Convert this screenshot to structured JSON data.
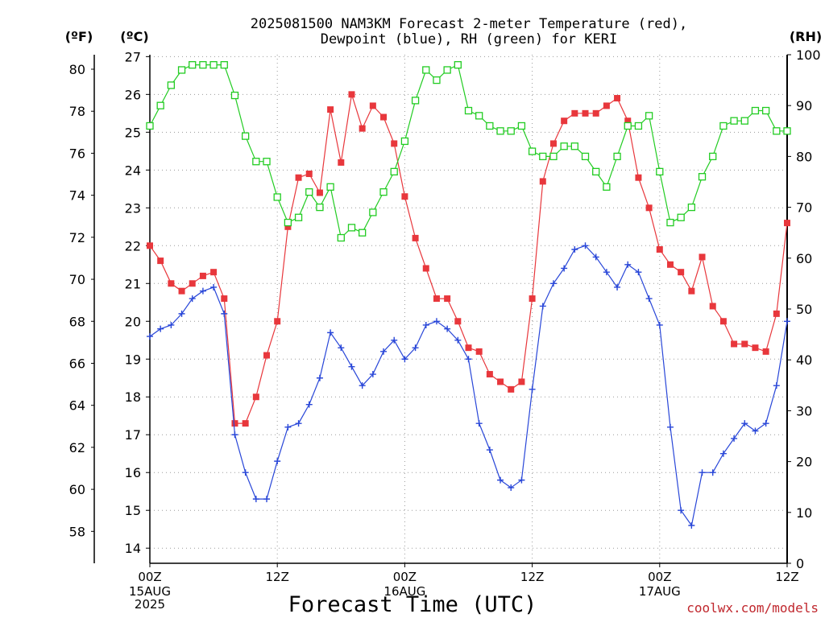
{
  "title": {
    "line1": "2025081500 NAM3KM Forecast 2-meter Temperature (red),",
    "line2": "Dewpoint (blue), RH (green) for KERI"
  },
  "units": {
    "fahrenheit": "(ºF)",
    "celsius": "(ºC)",
    "rh": "(RH)"
  },
  "x_axis": {
    "title": "Forecast Time (UTC)",
    "ticks": [
      {
        "hour": 0,
        "label": "00Z",
        "sub": [
          "15AUG",
          "2025"
        ]
      },
      {
        "hour": 12,
        "label": "12Z",
        "sub": []
      },
      {
        "hour": 24,
        "label": "00Z",
        "sub": [
          "16AUG"
        ]
      },
      {
        "hour": 36,
        "label": "12Z",
        "sub": []
      },
      {
        "hour": 48,
        "label": "00Z",
        "sub": [
          "17AUG"
        ]
      },
      {
        "hour": 60,
        "label": "12Z",
        "sub": []
      }
    ]
  },
  "credit": "coolwx.com/models",
  "colors": {
    "temperature": "#e8373c",
    "dewpoint": "#2846d8",
    "rh": "#22cc22",
    "grid": "#9a9a9a"
  },
  "chart_data": {
    "type": "line",
    "title": "2025081500 NAM3KM Forecast 2-meter Temperature (red), Dewpoint (blue), RH (green) for KERI",
    "xlabel": "Forecast Time (UTC)",
    "x_unit": "forecast hour from 2025-08-15 00Z",
    "xlim": [
      0,
      60
    ],
    "y_left_celsius": {
      "label": "(ºC)",
      "ylim": [
        13.6,
        27.05
      ],
      "ticks": [
        14,
        15,
        16,
        17,
        18,
        19,
        20,
        21,
        22,
        23,
        24,
        25,
        26,
        27
      ]
    },
    "y_left_fahrenheit": {
      "label": "(ºF)",
      "ticks": [
        58,
        60,
        62,
        64,
        66,
        68,
        70,
        72,
        74,
        76,
        78,
        80
      ]
    },
    "y_right_rh": {
      "label": "(RH)",
      "ylim": [
        0,
        100
      ],
      "ticks": [
        0,
        10,
        20,
        30,
        40,
        50,
        60,
        70,
        80,
        90,
        100
      ]
    },
    "grid": true,
    "x": [
      0,
      1,
      2,
      3,
      4,
      5,
      6,
      7,
      8,
      9,
      10,
      11,
      12,
      13,
      14,
      15,
      16,
      17,
      18,
      19,
      20,
      21,
      22,
      23,
      24,
      25,
      26,
      27,
      28,
      29,
      30,
      31,
      32,
      33,
      34,
      35,
      36,
      37,
      38,
      39,
      40,
      41,
      42,
      43,
      44,
      45,
      46,
      47,
      48,
      49,
      50,
      51,
      52,
      53,
      54,
      55,
      56,
      57,
      58,
      59,
      60
    ],
    "series": [
      {
        "name": "Temperature",
        "axis": "celsius",
        "marker": "filled-square",
        "values": [
          22.0,
          21.6,
          21.0,
          20.8,
          21.0,
          21.2,
          21.3,
          20.6,
          17.3,
          17.3,
          18.0,
          19.1,
          20.0,
          22.5,
          23.8,
          23.9,
          23.4,
          25.6,
          24.2,
          26.0,
          25.1,
          25.7,
          25.4,
          24.7,
          23.3,
          22.2,
          21.4,
          20.6,
          20.6,
          20.0,
          19.3,
          19.2,
          18.6,
          18.4,
          18.2,
          18.4,
          20.6,
          23.7,
          24.7,
          25.3,
          25.5,
          25.5,
          25.5,
          25.7,
          25.9,
          25.3,
          23.8,
          23.0,
          21.9,
          21.5,
          21.3,
          20.8,
          21.7,
          20.4,
          20.0,
          19.4,
          19.4,
          19.3,
          19.2,
          20.2,
          22.6
        ]
      },
      {
        "name": "Dewpoint",
        "axis": "celsius",
        "marker": "plus",
        "values": [
          19.6,
          19.8,
          19.9,
          20.2,
          20.6,
          20.8,
          20.9,
          20.2,
          17.0,
          16.0,
          15.3,
          15.3,
          16.3,
          17.2,
          17.3,
          17.8,
          18.5,
          19.7,
          19.3,
          18.8,
          18.3,
          18.6,
          19.2,
          19.5,
          19.0,
          19.3,
          19.9,
          20.0,
          19.8,
          19.5,
          19.0,
          17.3,
          16.6,
          15.8,
          15.6,
          15.8,
          18.2,
          20.4,
          21.0,
          21.4,
          21.9,
          22.0,
          21.7,
          21.3,
          20.9,
          21.5,
          21.3,
          20.6,
          19.9,
          17.2,
          15.0,
          14.6,
          16.0,
          16.0,
          16.5,
          16.9,
          17.3,
          17.1,
          17.3,
          18.3,
          20.0
        ]
      },
      {
        "name": "RH",
        "axis": "rh",
        "marker": "open-square",
        "values": [
          86,
          90,
          94,
          97,
          98,
          98,
          98,
          98,
          92,
          84,
          79,
          79,
          72,
          67,
          68,
          73,
          70,
          74,
          64,
          66,
          65,
          69,
          73,
          77,
          83,
          91,
          97,
          95,
          97,
          98,
          89,
          88,
          86,
          85,
          85,
          86,
          81,
          80,
          80,
          82,
          82,
          80,
          77,
          74,
          80,
          86,
          86,
          88,
          77,
          67,
          68,
          70,
          76,
          80,
          86,
          87,
          87,
          89,
          89,
          85,
          85
        ]
      }
    ]
  }
}
